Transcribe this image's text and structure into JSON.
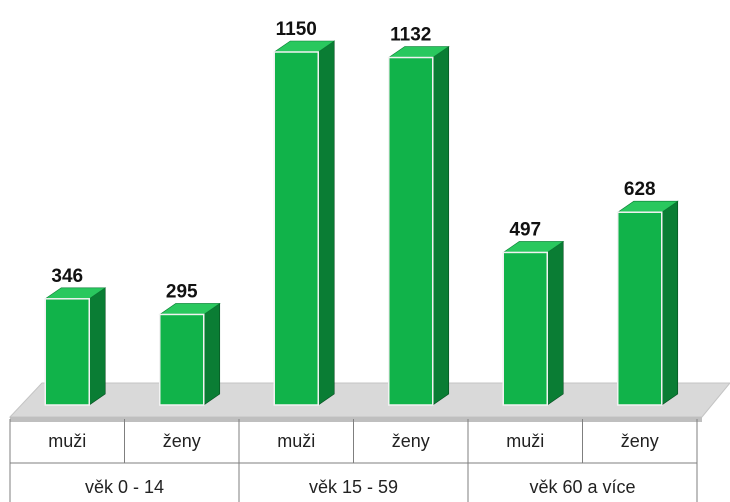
{
  "chart_data": {
    "type": "bar",
    "title": "",
    "xlabel": "",
    "ylabel": "",
    "ylim": [
      0,
      1150
    ],
    "grid": false,
    "legend": "none",
    "colors": {
      "front": "#11b34a",
      "side": "#0a7d34",
      "top": "#29c85e",
      "floor": "#d9d9d9",
      "table_lines": "#7f7f7f"
    },
    "groups": [
      {
        "label": "věk  0 - 14",
        "categories": [
          "muži",
          "ženy"
        ],
        "values": [
          346,
          295
        ]
      },
      {
        "label": "věk 15 - 59",
        "categories": [
          "muži",
          "ženy"
        ],
        "values": [
          1150,
          1132
        ]
      },
      {
        "label": "věk 60 a více",
        "categories": [
          "muži",
          "ženy"
        ],
        "values": [
          497,
          628
        ]
      }
    ]
  }
}
